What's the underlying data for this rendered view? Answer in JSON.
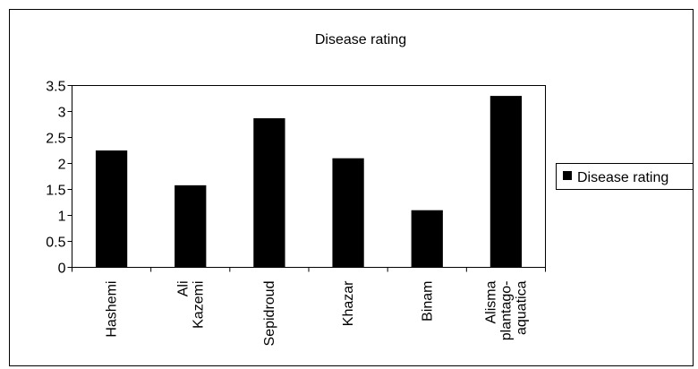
{
  "chart_data": {
    "type": "bar",
    "title": "Disease rating",
    "categories": [
      [
        "Hashemi"
      ],
      [
        "Ali",
        "Kazemi"
      ],
      [
        "Sepidroud"
      ],
      [
        "Khazar"
      ],
      [
        "Binam"
      ],
      [
        "Alisma",
        "plantago-",
        "aquatica"
      ]
    ],
    "series": [
      {
        "name": "Disease rating",
        "values": [
          2.25,
          1.58,
          2.87,
          2.1,
          1.1,
          3.3
        ]
      }
    ],
    "ylim": [
      0,
      3.5
    ],
    "yticks": [
      "0",
      "0.5",
      "1",
      "1.5",
      "2",
      "2.5",
      "3",
      "3.5"
    ],
    "legend_position": "right",
    "bar_color": "#000000",
    "gridlines": false
  }
}
